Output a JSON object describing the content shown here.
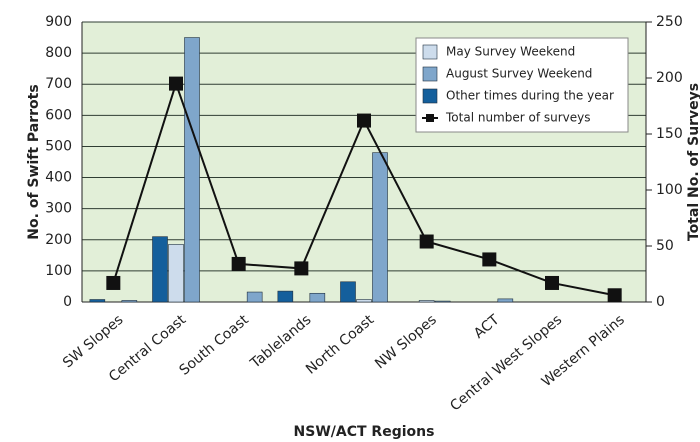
{
  "chart_data": {
    "type": "bar",
    "xlabel": "NSW/ACT Regions",
    "ylabel": "No. of Swift Parrots",
    "y2label": "Total No. of Surveys",
    "categories": [
      "SW Slopes",
      "Central Coast",
      "South Coast",
      "Tablelands",
      "North Coast",
      "NW Slopes",
      "ACT",
      "Central West Slopes",
      "Western Plains"
    ],
    "series": [
      {
        "name": "May Survey Weekend",
        "color": "#cddcec",
        "values": [
          0,
          185,
          0,
          0,
          8,
          5,
          0,
          0,
          0
        ]
      },
      {
        "name": "August Survey Weekend",
        "color": "#7fa6cb",
        "values": [
          5,
          850,
          32,
          28,
          480,
          3,
          10,
          0,
          0
        ]
      },
      {
        "name": "Other times during the year",
        "color": "#145f9c",
        "values": [
          8,
          210,
          0,
          35,
          65,
          0,
          0,
          0,
          0
        ]
      },
      {
        "name": "Total number of surveys",
        "color": "#111111",
        "type": "line",
        "axis": "y2",
        "values": [
          17,
          195,
          34,
          30,
          162,
          54,
          38,
          17,
          6
        ]
      }
    ],
    "ylim": [
      0,
      900
    ],
    "yticks": [
      0,
      100,
      200,
      300,
      400,
      500,
      600,
      700,
      800,
      900
    ],
    "y2lim": [
      0,
      250
    ],
    "y2ticks": [
      0,
      50,
      100,
      150,
      200,
      250
    ],
    "grid": true,
    "legend": "upper right"
  }
}
